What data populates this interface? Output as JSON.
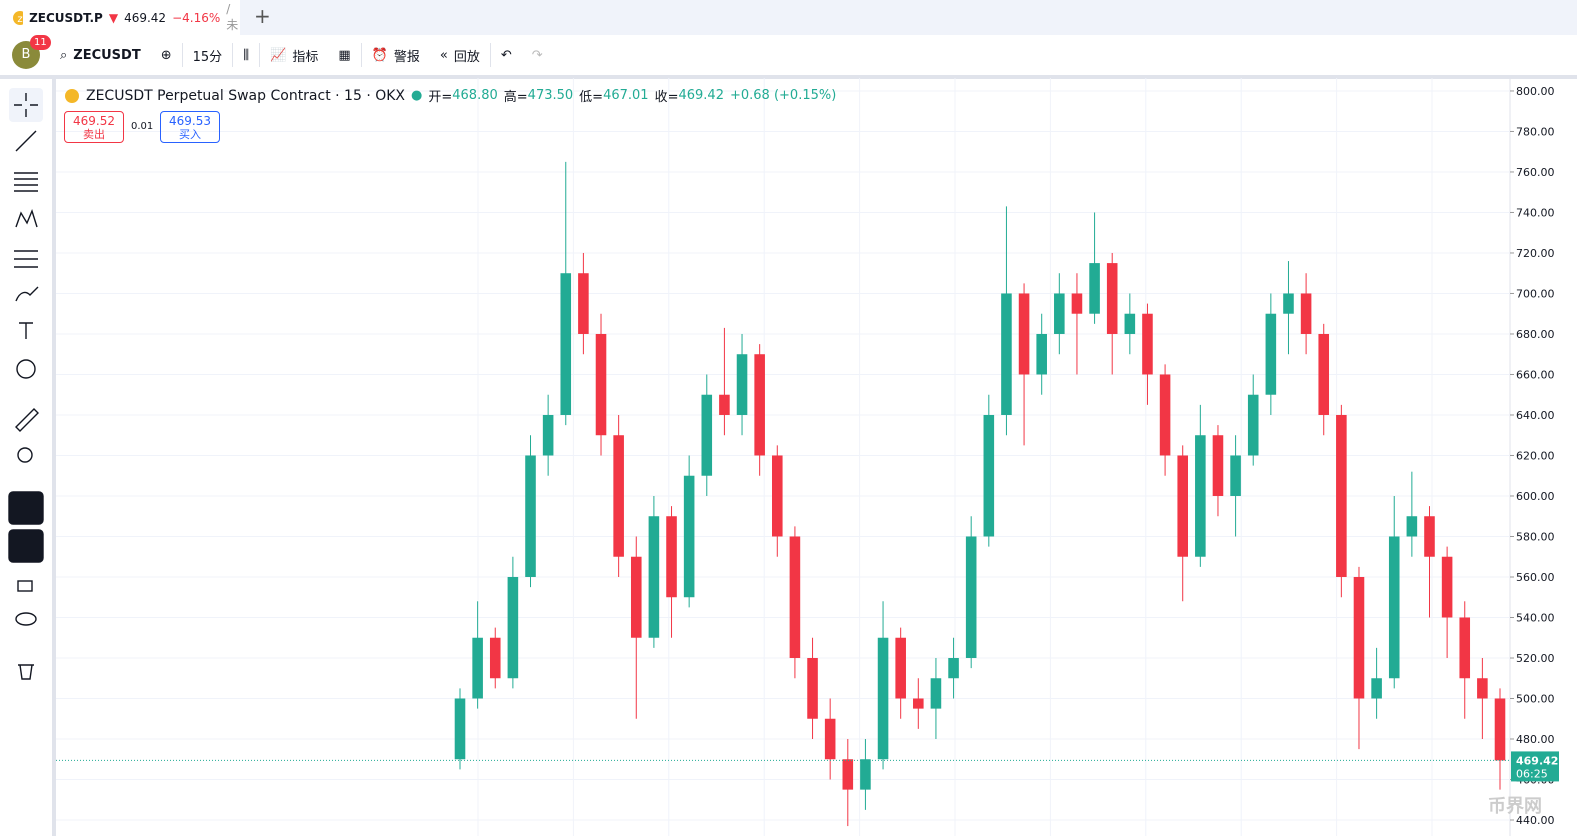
{
  "ui": {
    "tab": {
      "symbol": "ZECUSDT.P",
      "price": "469.42",
      "change": "−4.16%",
      "extra": "/ 未"
    },
    "toolbar": {
      "avatar": "B",
      "badge": "11",
      "symbol": "ZECUSDT",
      "interval": "15分",
      "indicators": "指标",
      "alert": "警报",
      "replay": "回放"
    },
    "legend": {
      "title": "ZECUSDT Perpetual Swap Contract · 15 · OKX",
      "open_label": "开=",
      "open": "468.80",
      "high_label": "高=",
      "high": "473.50",
      "low_label": "低=",
      "low": "467.01",
      "close_label": "收=",
      "close": "469.42",
      "change": "+0.68 (+0.15%)"
    },
    "sell": {
      "price": "469.52",
      "label": "卖出"
    },
    "spread": "0.01",
    "buy": {
      "price": "469.53",
      "label": "买入"
    },
    "watermark": "币界网"
  },
  "chart_data": {
    "type": "candlestick",
    "up_color": "#22ab94",
    "down_color": "#f23645",
    "countdown": "06:25",
    "grid": true,
    "ylim": [
      432.1,
      806.4
    ],
    "yticks": [
      {
        "value": 440,
        "label": "440.00"
      },
      {
        "value": 460,
        "label": "460.00"
      },
      {
        "value": 480,
        "label": "480.00"
      },
      {
        "value": 500,
        "label": "500.00"
      },
      {
        "value": 520,
        "label": "520.00"
      },
      {
        "value": 540,
        "label": "540.00"
      },
      {
        "value": 560,
        "label": "560.00"
      },
      {
        "value": 580,
        "label": "580.00"
      },
      {
        "value": 600,
        "label": "600.00"
      },
      {
        "value": 620,
        "label": "620.00"
      },
      {
        "value": 640,
        "label": "640.00"
      },
      {
        "value": 660,
        "label": "660.00"
      },
      {
        "value": 680,
        "label": "680.00"
      },
      {
        "value": 700,
        "label": "700.00"
      },
      {
        "value": 720,
        "label": "720.00"
      },
      {
        "value": 740,
        "label": "740.00"
      },
      {
        "value": 760,
        "label": "760.00"
      },
      {
        "value": 780,
        "label": "780.00"
      },
      {
        "value": 800,
        "label": "800.00"
      }
    ],
    "open": [
      470,
      500,
      530,
      510,
      560,
      620,
      640,
      710,
      680,
      630,
      570,
      530,
      590,
      550,
      610,
      650,
      640,
      670,
      620,
      580,
      520,
      490,
      470,
      455,
      470,
      530,
      500,
      495,
      510,
      520,
      580,
      640,
      700,
      660,
      680,
      700,
      690,
      715,
      680,
      690,
      660,
      620,
      570,
      630,
      600,
      620,
      650,
      690,
      700,
      680,
      640,
      560,
      500,
      510,
      580,
      590,
      570,
      540,
      510,
      500
    ],
    "high": [
      505,
      548,
      535,
      570,
      630,
      650,
      765,
      720,
      690,
      640,
      580,
      600,
      595,
      620,
      660,
      683,
      680,
      675,
      625,
      585,
      530,
      500,
      480,
      480,
      548,
      535,
      510,
      520,
      530,
      590,
      650,
      743,
      705,
      690,
      710,
      710,
      740,
      720,
      700,
      695,
      665,
      625,
      645,
      635,
      630,
      660,
      700,
      716,
      710,
      685,
      645,
      565,
      525,
      600,
      612,
      595,
      575,
      548,
      520,
      505
    ],
    "low": [
      465,
      495,
      505,
      505,
      555,
      610,
      635,
      670,
      620,
      560,
      490,
      525,
      530,
      545,
      600,
      630,
      630,
      610,
      570,
      510,
      480,
      460,
      437,
      445,
      465,
      490,
      485,
      480,
      500,
      515,
      575,
      630,
      625,
      650,
      670,
      660,
      685,
      660,
      670,
      645,
      610,
      548,
      565,
      590,
      580,
      615,
      640,
      670,
      670,
      630,
      550,
      475,
      490,
      505,
      570,
      540,
      520,
      490,
      480,
      455
    ],
    "close": [
      500,
      530,
      510,
      560,
      620,
      640,
      710,
      680,
      630,
      570,
      530,
      590,
      550,
      610,
      650,
      640,
      670,
      620,
      580,
      520,
      490,
      470,
      455,
      470,
      530,
      500,
      495,
      510,
      520,
      580,
      640,
      700,
      660,
      680,
      700,
      690,
      715,
      680,
      690,
      660,
      620,
      570,
      630,
      600,
      620,
      650,
      690,
      700,
      680,
      640,
      560,
      500,
      510,
      580,
      590,
      570,
      540,
      510,
      500,
      469.42
    ]
  }
}
